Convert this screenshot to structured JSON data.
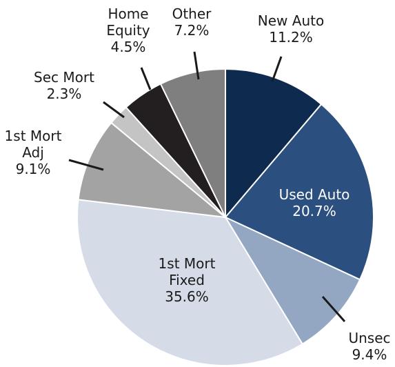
{
  "chart_data": {
    "type": "pie",
    "categories": [
      "New Auto",
      "Used Auto",
      "Unsec",
      "1st Mort\nFixed",
      "1st Mort\nAdj",
      "Sec Mort",
      "Home\nEquity",
      "Other"
    ],
    "values": [
      11.2,
      20.7,
      9.4,
      35.6,
      9.1,
      2.3,
      4.5,
      7.2
    ],
    "value_labels": [
      "11.2%",
      "20.7%",
      "9.4%",
      "35.6%",
      "9.1%",
      "2.3%",
      "4.5%",
      "7.2%"
    ],
    "colors": [
      "#0e2a4f",
      "#2b4f7e",
      "#94a7c2",
      "#d5dbe7",
      "#a3a3a3",
      "#c4c4c4",
      "#231f20",
      "#7f7f7f"
    ]
  }
}
